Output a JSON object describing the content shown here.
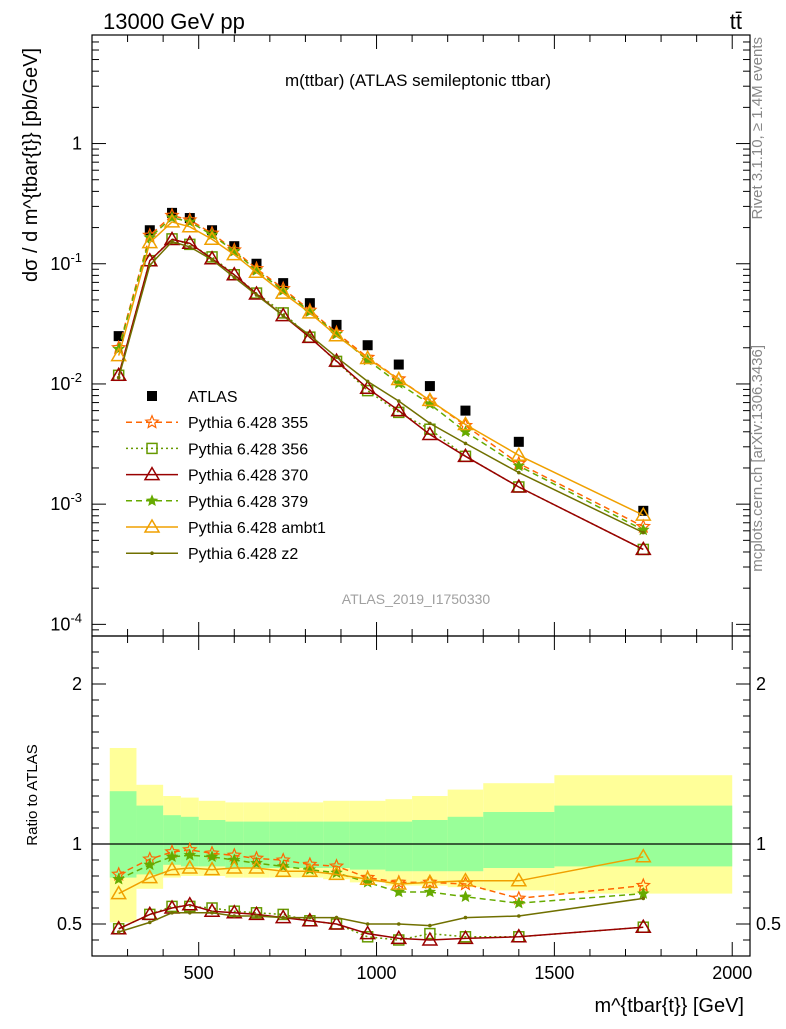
{
  "header": {
    "energy_label": "13000 GeV pp",
    "process_label": "tt̄",
    "plot_title": "m(ttbar) (ATLAS semileptonic ttbar)",
    "analysis_id": "ATLAS_2019_I1750330",
    "side_rivet": "Rivet 3.1.10, ≥ 1.4M events",
    "side_mcplots": "mcplots.cern.ch [arXiv:1306.3436]"
  },
  "axes": {
    "ylabel_main": "dσ / d m^{tbar{t}} [pb/GeV]",
    "ylabel_ratio": "Ratio to ATLAS",
    "xlabel": "m^{tbar{t}} [GeV]",
    "xlim": [
      200,
      2050
    ],
    "ylim_main": [
      8e-05,
      8
    ],
    "ylim_ratio": [
      0.3,
      2.3
    ],
    "x_ticks": [
      "500",
      "1000",
      "1500",
      "2000"
    ],
    "y_ticks_main": [
      "1",
      "10^-1",
      "10^-2",
      "10^-3",
      "10^-4"
    ],
    "y_ticks_ratio": [
      "0.5",
      "1",
      "2"
    ]
  },
  "chart_data": {
    "type": "line",
    "x": [
      275,
      362.5,
      425,
      475,
      537.5,
      600,
      662.5,
      737.5,
      812.5,
      887.5,
      975,
      1062.5,
      1150,
      1250,
      1400,
      1750
    ],
    "band_edges": [
      250,
      325,
      400,
      450,
      500,
      575,
      625,
      700,
      775,
      850,
      925,
      1025,
      1100,
      1200,
      1300,
      1500,
      2000
    ],
    "series": [
      {
        "name": "ATLAS",
        "color": "#000000",
        "style": "data",
        "values": [
          0.025,
          0.19,
          0.265,
          0.24,
          0.19,
          0.14,
          0.1,
          0.069,
          0.047,
          0.031,
          0.021,
          0.0145,
          0.0096,
          0.006,
          0.0033,
          0.00088
        ]
      },
      {
        "name": "Pythia 6.428 355",
        "color": "#ff6600",
        "style": "dashed",
        "marker": "star",
        "values": [
          0.02,
          0.172,
          0.252,
          0.231,
          0.179,
          0.13,
          0.091,
          0.062,
          0.041,
          0.0267,
          0.0166,
          0.011,
          0.0073,
          0.0045,
          0.00218,
          0.00065
        ],
        "ratio": [
          0.81,
          0.905,
          0.95,
          0.963,
          0.942,
          0.929,
          0.91,
          0.899,
          0.872,
          0.861,
          0.79,
          0.76,
          0.76,
          0.75,
          0.66,
          0.74
        ]
      },
      {
        "name": "Pythia 6.428 356",
        "color": "#669900",
        "style": "dotted",
        "marker": "open-square",
        "values": [
          0.0118,
          0.106,
          0.161,
          0.145,
          0.114,
          0.081,
          0.057,
          0.039,
          0.0245,
          0.0154,
          0.0088,
          0.0058,
          0.0042,
          0.0025,
          0.00139,
          0.00042
        ],
        "ratio": [
          0.47,
          0.56,
          0.61,
          0.61,
          0.6,
          0.58,
          0.57,
          0.56,
          0.52,
          0.5,
          0.42,
          0.4,
          0.44,
          0.42,
          0.42,
          0.48
        ]
      },
      {
        "name": "Pythia 6.428 370",
        "color": "#990000",
        "style": "solid",
        "marker": "open-triangle",
        "values": [
          0.0118,
          0.106,
          0.159,
          0.148,
          0.11,
          0.081,
          0.056,
          0.037,
          0.0244,
          0.0155,
          0.0092,
          0.006,
          0.0038,
          0.0025,
          0.00139,
          0.00042
        ],
        "ratio": [
          0.47,
          0.56,
          0.6,
          0.62,
          0.58,
          0.57,
          0.56,
          0.54,
          0.52,
          0.5,
          0.44,
          0.41,
          0.4,
          0.41,
          0.42,
          0.48
        ]
      },
      {
        "name": "Pythia 6.428 379",
        "color": "#66aa00",
        "style": "dashed",
        "marker": "filled-star",
        "values": [
          0.0195,
          0.165,
          0.242,
          0.223,
          0.174,
          0.127,
          0.088,
          0.06,
          0.04,
          0.026,
          0.0158,
          0.0101,
          0.0068,
          0.004,
          0.00208,
          0.00061
        ],
        "ratio": [
          0.78,
          0.87,
          0.92,
          0.93,
          0.92,
          0.9,
          0.88,
          0.86,
          0.84,
          0.82,
          0.76,
          0.7,
          0.7,
          0.67,
          0.63,
          0.69
        ]
      },
      {
        "name": "Pythia 6.428 ambt1",
        "color": "#f0a000",
        "style": "solid",
        "marker": "open-triangle",
        "values": [
          0.0172,
          0.15,
          0.223,
          0.203,
          0.16,
          0.119,
          0.085,
          0.057,
          0.039,
          0.0252,
          0.0163,
          0.0109,
          0.0073,
          0.0046,
          0.00255,
          0.00081
        ],
        "ratio": [
          0.69,
          0.79,
          0.84,
          0.85,
          0.84,
          0.85,
          0.85,
          0.83,
          0.83,
          0.81,
          0.78,
          0.75,
          0.76,
          0.77,
          0.77,
          0.92
        ]
      },
      {
        "name": "Pythia 6.428 z2",
        "color": "#707000",
        "style": "solid",
        "marker": "dot",
        "values": [
          0.0113,
          0.097,
          0.153,
          0.138,
          0.108,
          0.077,
          0.055,
          0.037,
          0.0254,
          0.0167,
          0.0105,
          0.0072,
          0.0047,
          0.0032,
          0.00183,
          0.00058
        ],
        "ratio": [
          0.45,
          0.51,
          0.57,
          0.57,
          0.57,
          0.55,
          0.55,
          0.54,
          0.54,
          0.54,
          0.5,
          0.5,
          0.49,
          0.54,
          0.55,
          0.66
        ]
      }
    ],
    "band_inner": [
      [
        0.79,
        1.33
      ],
      [
        0.81,
        1.24
      ],
      [
        0.87,
        1.18
      ],
      [
        0.86,
        1.17
      ],
      [
        0.86,
        1.15
      ],
      [
        0.85,
        1.14
      ],
      [
        0.85,
        1.14
      ],
      [
        0.85,
        1.14
      ],
      [
        0.85,
        1.14
      ],
      [
        0.85,
        1.14
      ],
      [
        0.84,
        1.14
      ],
      [
        0.83,
        1.14
      ],
      [
        0.83,
        1.15
      ],
      [
        0.83,
        1.17
      ],
      [
        0.85,
        1.2
      ],
      [
        0.86,
        1.24
      ]
    ],
    "band_outer": [
      [
        0.51,
        1.6
      ],
      [
        0.72,
        1.37
      ],
      [
        0.79,
        1.3
      ],
      [
        0.8,
        1.29
      ],
      [
        0.8,
        1.27
      ],
      [
        0.79,
        1.26
      ],
      [
        0.79,
        1.26
      ],
      [
        0.79,
        1.26
      ],
      [
        0.79,
        1.26
      ],
      [
        0.78,
        1.27
      ],
      [
        0.76,
        1.27
      ],
      [
        0.74,
        1.28
      ],
      [
        0.74,
        1.3
      ],
      [
        0.73,
        1.34
      ],
      [
        0.71,
        1.38
      ],
      [
        0.69,
        1.43
      ]
    ],
    "ratio_reference": 1
  }
}
